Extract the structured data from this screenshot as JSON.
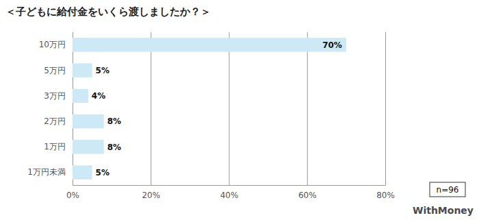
{
  "chart_data": {
    "type": "bar",
    "title": "＜子どもに給付金をいくら渡しましたか？＞",
    "orientation": "horizontal",
    "categories": [
      "10万円",
      "5万円",
      "3万円",
      "2万円",
      "1万円",
      "1万円未満"
    ],
    "values": [
      70,
      5,
      4,
      8,
      8,
      5
    ],
    "value_labels": [
      "70%",
      "5%",
      "4%",
      "8%",
      "8%",
      "5%"
    ],
    "data_labels": true,
    "color": "#cde9f6",
    "xlim": [
      0,
      80
    ],
    "xticks": [
      {
        "value": 0,
        "label": "0%"
      },
      {
        "value": 20,
        "label": "20%"
      },
      {
        "value": 40,
        "label": "40%"
      },
      {
        "value": 60,
        "label": "60%"
      },
      {
        "value": 80,
        "label": "80%"
      }
    ],
    "grid": true,
    "annotations": [
      "n=96",
      "WithMoney"
    ]
  }
}
